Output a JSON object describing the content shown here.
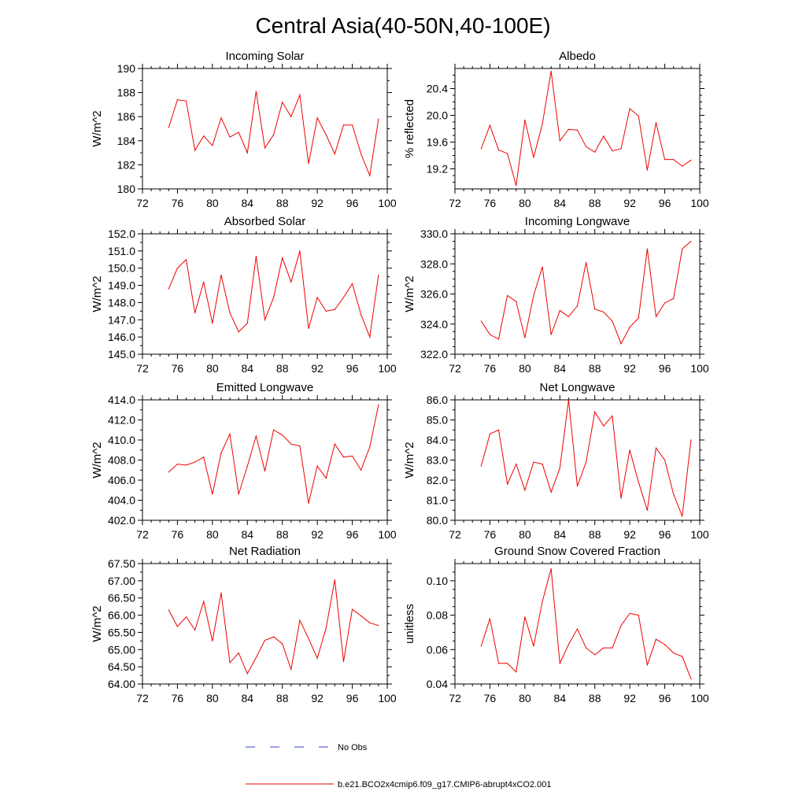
{
  "figure_title": "Central Asia(40-50N,40-100E)",
  "years": [
    75,
    76,
    77,
    78,
    79,
    80,
    81,
    82,
    83,
    84,
    85,
    86,
    87,
    88,
    89,
    90,
    91,
    92,
    93,
    94,
    95,
    96,
    97,
    98,
    99
  ],
  "legend": {
    "obs_label": "No Obs",
    "model_label": "b.e21.BCO2x4cmip6.f09_g17.CMIP6-abrupt4xCO2.001",
    "obs_color": "#3344cc",
    "model_color": "#ee0000"
  },
  "chart_data": [
    {
      "type": "line",
      "title": "Incoming Solar",
      "ylabel": "W/m^2",
      "xlim": [
        72,
        100
      ],
      "xticks": [
        72,
        76,
        80,
        84,
        88,
        92,
        96,
        100
      ],
      "xtick_labels": [
        "72",
        "76",
        "80",
        "84",
        "88",
        "92",
        "96",
        "100"
      ],
      "ylim": [
        180,
        190
      ],
      "yticks": [
        180,
        182,
        184,
        186,
        188,
        190
      ],
      "ytick_labels": [
        "180",
        "182",
        "184",
        "186",
        "188",
        "190"
      ],
      "yminor": [
        181,
        183,
        185,
        187,
        189
      ],
      "values": [
        185.1,
        187.4,
        187.3,
        183.2,
        184.4,
        183.6,
        185.9,
        184.3,
        184.7,
        183.0,
        188.1,
        183.4,
        184.5,
        187.2,
        186.0,
        187.8,
        182.1,
        185.9,
        184.5,
        182.9,
        185.3,
        185.3,
        182.9,
        181.1,
        185.8
      ]
    },
    {
      "type": "line",
      "title": "Albedo",
      "ylabel": "% reflected",
      "xlim": [
        72,
        100
      ],
      "xticks": [
        72,
        76,
        80,
        84,
        88,
        92,
        96,
        100
      ],
      "xtick_labels": [
        "72",
        "76",
        "80",
        "84",
        "88",
        "92",
        "96",
        "100"
      ],
      "ylim": [
        18.9,
        20.7
      ],
      "yticks": [
        19.2,
        19.6,
        20.0,
        20.4
      ],
      "ytick_labels": [
        "19.2",
        "19.6",
        "20.0",
        "20.4"
      ],
      "yminor": [
        19.0,
        19.1,
        19.3,
        19.4,
        19.5,
        19.7,
        19.8,
        19.9,
        20.1,
        20.2,
        20.3,
        20.5,
        20.6
      ],
      "values": [
        19.5,
        19.85,
        19.48,
        19.43,
        18.95,
        19.93,
        19.37,
        19.87,
        20.66,
        19.62,
        19.79,
        19.78,
        19.53,
        19.45,
        19.69,
        19.47,
        19.5,
        20.1,
        19.99,
        19.18,
        19.89,
        19.34,
        19.34,
        19.24,
        19.33
      ]
    },
    {
      "type": "line",
      "title": "Absorbed Solar",
      "ylabel": "W/m^2",
      "xlim": [
        72,
        100
      ],
      "xticks": [
        72,
        76,
        80,
        84,
        88,
        92,
        96,
        100
      ],
      "xtick_labels": [
        "72",
        "76",
        "80",
        "84",
        "88",
        "92",
        "96",
        "100"
      ],
      "ylim": [
        145,
        152
      ],
      "yticks": [
        145,
        146,
        147,
        148,
        149,
        150,
        151,
        152
      ],
      "ytick_labels": [
        "145.0",
        "146.0",
        "147.0",
        "148.0",
        "149.0",
        "150.0",
        "151.0",
        "152.0"
      ],
      "yminor": [
        145.5,
        146.5,
        147.5,
        148.5,
        149.5,
        150.5,
        151.5
      ],
      "values": [
        148.8,
        150.0,
        150.5,
        147.4,
        149.2,
        146.8,
        149.6,
        147.4,
        146.3,
        146.8,
        150.7,
        147.0,
        148.3,
        150.6,
        149.2,
        151.0,
        146.5,
        148.3,
        147.5,
        147.6,
        148.3,
        149.1,
        147.3,
        146.0,
        149.6
      ]
    },
    {
      "type": "line",
      "title": "Incoming Longwave",
      "ylabel": "W/m^2",
      "xlim": [
        72,
        100
      ],
      "xticks": [
        72,
        76,
        80,
        84,
        88,
        92,
        96,
        100
      ],
      "xtick_labels": [
        "72",
        "76",
        "80",
        "84",
        "88",
        "92",
        "96",
        "100"
      ],
      "ylim": [
        322,
        330
      ],
      "yticks": [
        322,
        324,
        326,
        328,
        330
      ],
      "ytick_labels": [
        "322.0",
        "324.0",
        "326.0",
        "328.0",
        "330.0"
      ],
      "yminor": [
        322.5,
        323,
        323.5,
        324.5,
        325,
        325.5,
        326.5,
        327,
        327.5,
        328.5,
        329,
        329.5
      ],
      "values": [
        324.2,
        323.3,
        323.0,
        325.9,
        325.5,
        323.1,
        325.9,
        327.8,
        323.3,
        324.9,
        324.5,
        325.2,
        328.1,
        325.0,
        324.8,
        324.2,
        322.7,
        323.8,
        324.4,
        329.0,
        324.5,
        325.4,
        325.7,
        329.0,
        329.5
      ]
    },
    {
      "type": "line",
      "title": "Emitted Longwave",
      "ylabel": "W/m^2",
      "xlim": [
        72,
        100
      ],
      "xticks": [
        72,
        76,
        80,
        84,
        88,
        92,
        96,
        100
      ],
      "xtick_labels": [
        "72",
        "76",
        "80",
        "84",
        "88",
        "92",
        "96",
        "100"
      ],
      "ylim": [
        402,
        414
      ],
      "yticks": [
        402,
        404,
        406,
        408,
        410,
        412,
        414
      ],
      "ytick_labels": [
        "402.0",
        "404.0",
        "406.0",
        "408.0",
        "410.0",
        "412.0",
        "414.0"
      ],
      "yminor": [
        403,
        405,
        407,
        409,
        411,
        413
      ],
      "values": [
        406.8,
        407.6,
        407.5,
        407.8,
        408.3,
        404.6,
        408.7,
        410.6,
        404.6,
        407.4,
        410.4,
        406.9,
        411.0,
        410.5,
        409.6,
        409.4,
        403.7,
        407.4,
        406.2,
        409.6,
        408.3,
        408.4,
        407.0,
        409.3,
        413.5
      ]
    },
    {
      "type": "line",
      "title": "Net Longwave",
      "ylabel": "W/m^2",
      "xlim": [
        72,
        100
      ],
      "xticks": [
        72,
        76,
        80,
        84,
        88,
        92,
        96,
        100
      ],
      "xtick_labels": [
        "72",
        "76",
        "80",
        "84",
        "88",
        "92",
        "96",
        "100"
      ],
      "ylim": [
        80,
        86
      ],
      "yticks": [
        80,
        81,
        82,
        83,
        84,
        85,
        86
      ],
      "ytick_labels": [
        "80.0",
        "81.0",
        "82.0",
        "83.0",
        "84.0",
        "85.0",
        "86.0"
      ],
      "yminor": [
        80.5,
        81.5,
        82.5,
        83.5,
        84.5,
        85.5
      ],
      "values": [
        82.7,
        84.3,
        84.5,
        81.8,
        82.8,
        81.5,
        82.9,
        82.8,
        81.4,
        82.6,
        86.0,
        81.7,
        82.9,
        85.4,
        84.7,
        85.2,
        81.1,
        83.5,
        81.9,
        80.5,
        83.6,
        83.0,
        81.3,
        80.2,
        84.0
      ]
    },
    {
      "type": "line",
      "title": "Net Radiation",
      "ylabel": "W/m^2",
      "xlim": [
        72,
        100
      ],
      "xticks": [
        72,
        76,
        80,
        84,
        88,
        92,
        96,
        100
      ],
      "xtick_labels": [
        "72",
        "76",
        "80",
        "84",
        "88",
        "92",
        "96",
        "100"
      ],
      "ylim": [
        64,
        67.5
      ],
      "yticks": [
        64,
        64.5,
        65,
        65.5,
        66,
        66.5,
        67,
        67.5
      ],
      "ytick_labels": [
        "64.00",
        "64.50",
        "65.00",
        "65.50",
        "66.00",
        "66.50",
        "67.00",
        "67.50"
      ],
      "yminor": [
        64.25,
        64.75,
        65.25,
        65.75,
        66.25,
        66.75,
        67.25
      ],
      "values": [
        66.15,
        65.67,
        65.95,
        65.57,
        66.4,
        65.25,
        66.65,
        64.62,
        64.9,
        64.3,
        64.77,
        65.27,
        65.37,
        65.17,
        64.42,
        65.85,
        65.32,
        64.75,
        65.62,
        67.03,
        64.65,
        66.17,
        65.98,
        65.78,
        65.7
      ]
    },
    {
      "type": "line",
      "title": "Ground Snow Covered Fraction",
      "ylabel": "unitless",
      "xlim": [
        72,
        100
      ],
      "xticks": [
        72,
        76,
        80,
        84,
        88,
        92,
        96,
        100
      ],
      "xtick_labels": [
        "72",
        "76",
        "80",
        "84",
        "88",
        "92",
        "96",
        "100"
      ],
      "ylim": [
        0.04,
        0.11
      ],
      "yticks": [
        0.04,
        0.06,
        0.08,
        0.1
      ],
      "ytick_labels": [
        "0.04",
        "0.06",
        "0.08",
        "0.10"
      ],
      "yminor": [
        0.045,
        0.05,
        0.055,
        0.065,
        0.07,
        0.075,
        0.085,
        0.09,
        0.095,
        0.105
      ],
      "values": [
        0.062,
        0.078,
        0.052,
        0.052,
        0.047,
        0.079,
        0.062,
        0.088,
        0.107,
        0.052,
        0.063,
        0.072,
        0.061,
        0.057,
        0.061,
        0.061,
        0.074,
        0.081,
        0.08,
        0.051,
        0.066,
        0.063,
        0.058,
        0.056,
        0.043
      ]
    }
  ]
}
